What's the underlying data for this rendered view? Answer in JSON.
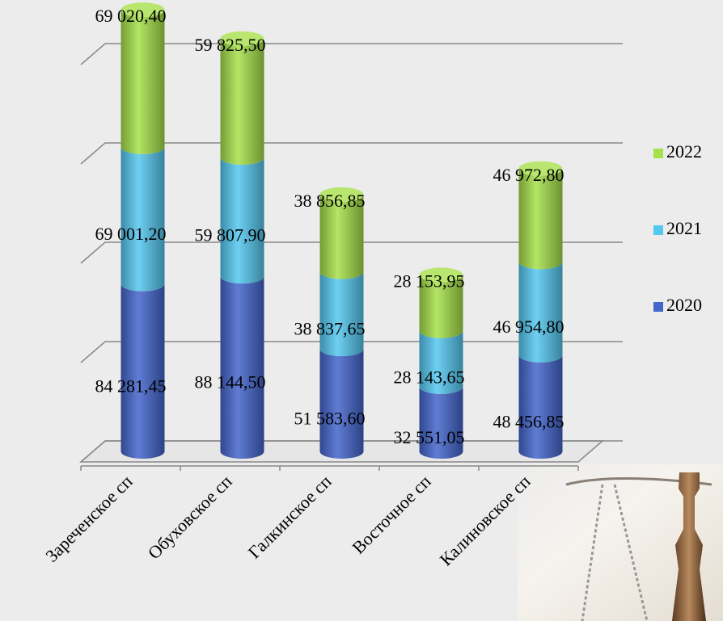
{
  "chart_data": {
    "type": "bar3d-stacked",
    "categories": [
      "Зареченское сп",
      "Обуховское сп",
      "Галкинское сп",
      "Восточное сп",
      "Калиновское сп"
    ],
    "series": [
      {
        "name": "2020",
        "color": "#4466cc",
        "values": [
          84281.45,
          88144.5,
          51583.6,
          32551.05,
          48456.85
        ],
        "value_labels": [
          "84 281,45",
          "88 144,50",
          "51 583,60",
          "32 551,05",
          "48 456,85"
        ]
      },
      {
        "name": "2021",
        "color": "#55c8f0",
        "values": [
          69001.2,
          59807.9,
          38837.65,
          28143.65,
          46954.8
        ],
        "value_labels": [
          "69 001,20",
          "59 807,90",
          "38 837,65",
          "28 143,65",
          "46 954,80"
        ]
      },
      {
        "name": "2022",
        "color": "#a6e04a",
        "values": [
          69020.4,
          59825.5,
          38856.85,
          28153.95,
          46972.8
        ],
        "value_labels": [
          "69 020,40",
          "59 825,50",
          "38 856,85",
          "28 153,95",
          "46 972,80"
        ]
      }
    ],
    "ylim": [
      0,
      230000
    ],
    "yticks": [
      0,
      50000,
      100000,
      150000,
      200000
    ],
    "grid": true,
    "legend": "right"
  }
}
